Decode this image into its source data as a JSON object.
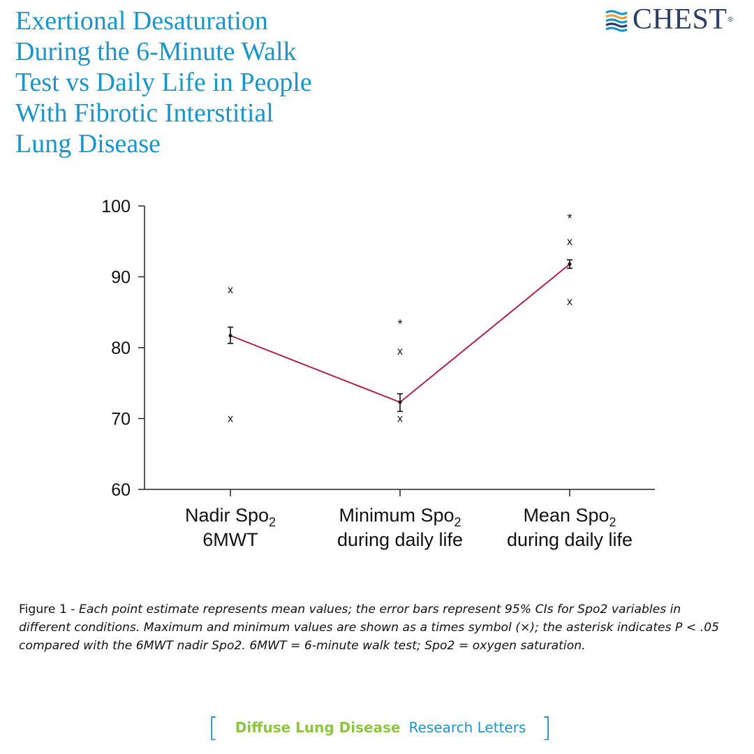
{
  "header": {
    "title_lines": [
      "Exertional Desaturation",
      "During the 6-Minute Walk",
      "Test vs Daily Life in People",
      "With Fibrotic Interstitial",
      "Lung Disease"
    ],
    "logo_text": "CHEST",
    "logo_reg": "®"
  },
  "colors": {
    "title": "#1b95c9",
    "line": "#b0224a",
    "logo_stripes": [
      "#1b95c9",
      "#e3a33a",
      "#2a3e63"
    ],
    "footer_category": "#8cc63f",
    "footer_section": "#1b95c9"
  },
  "chart_data": {
    "type": "line",
    "title": "",
    "xlabel": "",
    "ylabel": "",
    "ylim": [
      60,
      100
    ],
    "yticks": [
      "60",
      "70",
      "80",
      "90",
      "100"
    ],
    "categories": [
      {
        "line1": "Nadir Spo",
        "sub": "2",
        "line2": "6MWT"
      },
      {
        "line1": "Minimum Spo",
        "sub": "2",
        "line2": "during daily life"
      },
      {
        "line1": "Mean Spo",
        "sub": "2",
        "line2": "during daily life"
      }
    ],
    "series": [
      {
        "name": "Mean",
        "values": [
          81.7,
          72.3,
          91.8
        ],
        "ci_low": [
          80.6,
          71.0,
          91.2
        ],
        "ci_high": [
          82.9,
          73.5,
          92.4
        ]
      }
    ],
    "max_values": [
      88.2,
      79.5,
      95.0
    ],
    "min_values": [
      70.0,
      70.0,
      86.5
    ],
    "significance": [
      null,
      83.6,
      98.5
    ],
    "max_min_marker": "x",
    "significance_marker": "*"
  },
  "caption": {
    "label": "Figure 1 - ",
    "text": "Each point estimate represents mean values; the error bars represent 95% CIs for Spo2 variables in different conditions. Maximum and minimum values are shown as a times symbol (×); the asterisk indicates P < .05 compared with the 6MWT nadir Spo2. 6MWT = 6-minute walk test; Spo2 = oxygen saturation."
  },
  "footer": {
    "bracket_open": "[",
    "category": "Diffuse Lung Disease",
    "section": "Research Letters",
    "bracket_close": "]"
  }
}
